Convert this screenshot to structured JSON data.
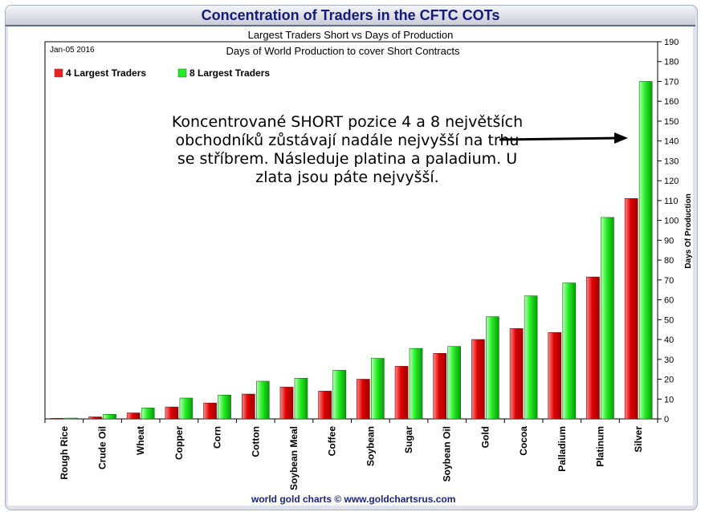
{
  "header": {
    "title": "Concentration of Traders in the CFTC COTs"
  },
  "chart_data": {
    "type": "bar",
    "subtitle": "Largest Traders Short vs Days of Production",
    "inner_title": "Days of World Production to cover Short Contracts",
    "date_label": "Jan-05  2016",
    "ylabel": "Days Of Production",
    "ylim": [
      0,
      190
    ],
    "yticks": [
      0,
      10,
      20,
      30,
      40,
      50,
      60,
      70,
      80,
      90,
      100,
      110,
      120,
      130,
      140,
      150,
      160,
      170,
      180,
      190
    ],
    "grid": false,
    "legend_position": "top-left",
    "categories": [
      "Rough Rice",
      "Crude Oil",
      "Wheat",
      "Copper",
      "Corn",
      "Cotton",
      "Soybean Meal",
      "Coffee",
      "Soybean",
      "Sugar",
      "Soybean Oil",
      "Gold",
      "Cocoa",
      "Palladium",
      "Platinum",
      "Silver"
    ],
    "series": [
      {
        "name": "4 Largest Traders",
        "color": "#ee2020",
        "values": [
          0.3,
          1,
          3,
          6,
          8,
          12.5,
          16,
          14,
          20,
          26.5,
          33,
          40,
          45.5,
          43.5,
          71.5,
          111
        ]
      },
      {
        "name": "8 Largest Traders",
        "color": "#22ee22",
        "values": [
          0.4,
          2.3,
          5.5,
          10.5,
          12,
          19,
          20.5,
          24.5,
          30.5,
          35.5,
          36.5,
          51.5,
          62,
          68.5,
          101.5,
          170
        ]
      }
    ],
    "annotation": "Koncentrované SHORT pozice 4 a 8 největších obchodníků zůstávají nadále nejvyšší na trhu se stříbrem. Následuje platina a paladium. U zlata jsou páte nejvyšší."
  },
  "footer": {
    "credit": "world gold charts © www.goldchartsrus.com"
  }
}
